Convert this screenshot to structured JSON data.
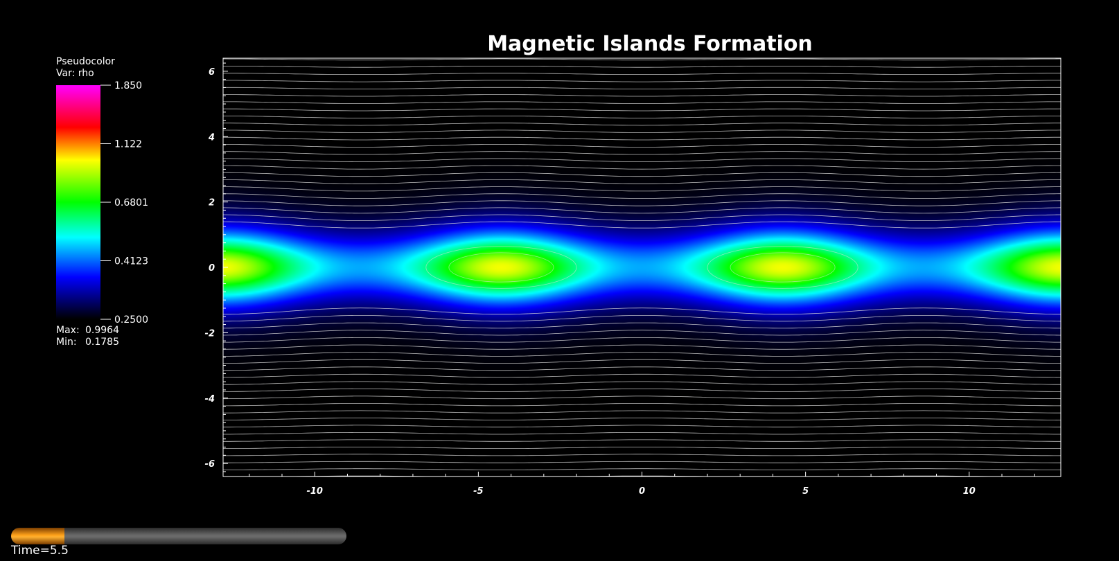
{
  "chart_data": {
    "type": "heatmap",
    "title": "Magnetic Islands Formation",
    "xlabel": "",
    "ylabel": "",
    "xlim": [
      -12.8,
      12.8
    ],
    "ylim": [
      -6.4,
      6.4
    ],
    "x_ticks": [
      "-10",
      "-5",
      "0",
      "5",
      "10"
    ],
    "x_tick_values": [
      -10,
      -5,
      0,
      5,
      10
    ],
    "y_ticks": [
      "6",
      "4",
      "2",
      "0",
      "-2",
      "-4",
      "-6"
    ],
    "y_tick_values": [
      6,
      4,
      2,
      0,
      -2,
      -4,
      -6
    ],
    "islands": [
      {
        "center_x": -4.3,
        "center_y": 0,
        "peak_rho": 1.0
      },
      {
        "center_x": 4.3,
        "center_y": 0,
        "peak_rho": 1.0
      }
    ],
    "x_points": [
      {
        "x": -8.6,
        "y": 0
      },
      {
        "x": 0,
        "y": 0
      },
      {
        "x": 8.6,
        "y": 0
      }
    ],
    "current_sheet_half_width": 1.3,
    "background_rho": 0.2,
    "field_lines": "white contour lines of magnetic flux",
    "colormap": [
      "#000000",
      "#0000ff",
      "#00ffff",
      "#00ff00",
      "#ffff00",
      "#ff0000",
      "#ff00ff"
    ],
    "grid": false
  },
  "legend": {
    "plot_type": "Pseudocolor",
    "var_label": "Var: rho",
    "ticks": [
      "1.850",
      "1.122",
      "0.6801",
      "0.4123",
      "0.2500"
    ],
    "max_label": "Max:",
    "max_value": "0.9964",
    "min_label": "Min:",
    "min_value": "0.1785"
  },
  "time": {
    "label": "Time=5.5",
    "progress": 0.16
  },
  "colors": {
    "background": "#000000",
    "axes": "#ffffff",
    "time_fill": "#ffa21a"
  }
}
